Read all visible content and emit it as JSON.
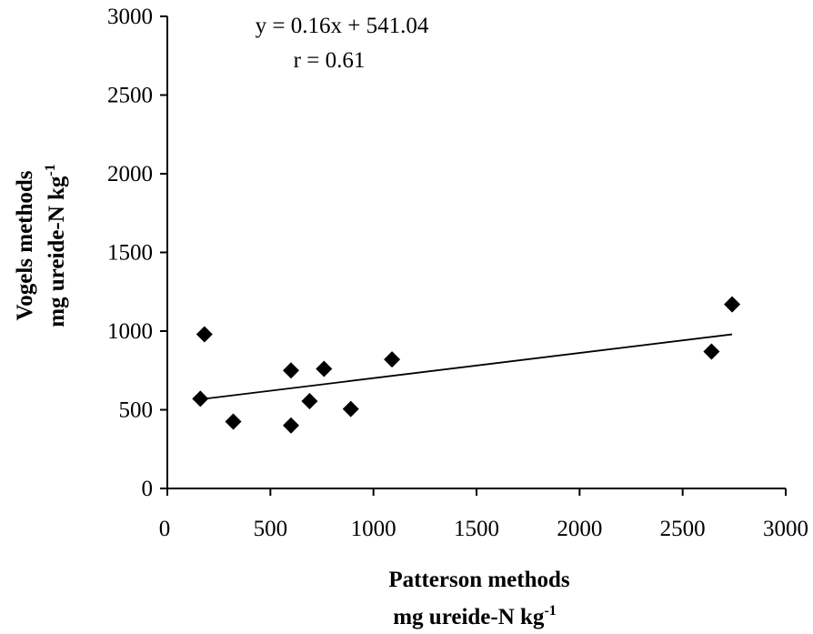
{
  "chart_data": {
    "type": "scatter",
    "xlabel": "Patterson methods",
    "xlabel_unit": "mg ureide-N kg",
    "xlabel_unit_sup": "-1",
    "ylabel": "Vogels methods",
    "ylabel_unit": "mg ureide-N kg",
    "ylabel_unit_sup": "-1",
    "xlim": [
      0,
      3000
    ],
    "ylim": [
      0,
      3000
    ],
    "x_ticks": [
      0,
      500,
      1000,
      1500,
      2000,
      2500,
      3000
    ],
    "y_ticks": [
      0,
      500,
      1000,
      1500,
      2000,
      2500,
      3000
    ],
    "x_tick_labels": [
      "0",
      "500",
      "1000",
      "1500",
      "2000",
      "2500",
      "3000"
    ],
    "y_tick_labels": [
      "0",
      "500",
      "1000",
      "1500",
      "2000",
      "2500",
      "3000"
    ],
    "grid": false,
    "points": [
      {
        "x": 160,
        "y": 570
      },
      {
        "x": 180,
        "y": 980
      },
      {
        "x": 320,
        "y": 425
      },
      {
        "x": 600,
        "y": 750
      },
      {
        "x": 600,
        "y": 400
      },
      {
        "x": 690,
        "y": 555
      },
      {
        "x": 760,
        "y": 760
      },
      {
        "x": 890,
        "y": 505
      },
      {
        "x": 1090,
        "y": 820
      },
      {
        "x": 2640,
        "y": 870
      },
      {
        "x": 2740,
        "y": 1170
      }
    ],
    "trendline": {
      "slope": 0.16,
      "intercept": 541.04,
      "x_range": [
        160,
        2740
      ],
      "equation": "y = 0.16x + 541.04",
      "r_label": "r = 0.61"
    }
  }
}
